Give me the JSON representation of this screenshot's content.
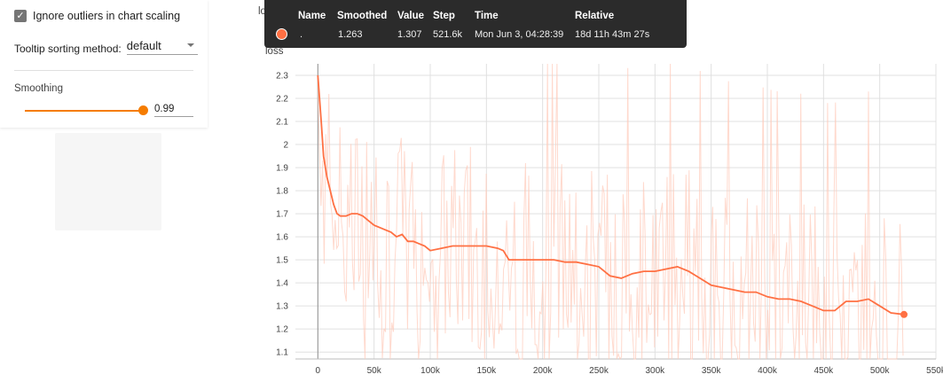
{
  "settings": {
    "ignore_outliers_label": "Ignore outliers in chart scaling",
    "ignore_outliers_checked": true,
    "tooltip_sorting_label": "Tooltip sorting method:",
    "tooltip_sorting_value": "default",
    "smoothing_label": "Smoothing",
    "smoothing_value": "0.99",
    "smoothing_level": 0.99
  },
  "header_title": "loss",
  "tooltip": {
    "headers": [
      "Name",
      "Smoothed",
      "Value",
      "Step",
      "Time",
      "Relative"
    ],
    "row": {
      "name": ".",
      "smoothed": "1.263",
      "value": "1.307",
      "step": "521.6k",
      "time": "Mon Jun 3, 04:28:39",
      "relative": "18d 11h 43m 27s"
    }
  },
  "colors": {
    "accent": "#f57c00",
    "smoothed_line": "#ff7043",
    "raw_line": "#ffccbc",
    "tooltip_bg": "#2b2b2b"
  },
  "chart_data": {
    "type": "line",
    "title": "loss",
    "xlabel": "",
    "ylabel": "",
    "x_ticks": [
      "0",
      "50k",
      "100k",
      "150k",
      "200k",
      "250k",
      "300k",
      "350k",
      "400k",
      "450k",
      "500k",
      "550k"
    ],
    "y_ticks": [
      "1.1",
      "1.2",
      "1.3",
      "1.4",
      "1.5",
      "1.6",
      "1.7",
      "1.8",
      "1.9",
      "2",
      "2.1",
      "2.2",
      "2.3"
    ],
    "xlim": [
      -20000,
      550000
    ],
    "ylim": [
      1.07,
      2.35
    ],
    "grid": true,
    "series": [
      {
        "role": "smoothed",
        "x": [
          0,
          1500,
          3000,
          5000,
          8000,
          11000,
          14000,
          17000,
          20000,
          25000,
          30000,
          35000,
          40000,
          45000,
          50000,
          55000,
          60000,
          65000,
          70000,
          75000,
          80000,
          85000,
          90000,
          95000,
          100000,
          110000,
          120000,
          130000,
          140000,
          150000,
          160000,
          165000,
          170000,
          180000,
          190000,
          200000,
          210000,
          220000,
          230000,
          240000,
          250000,
          260000,
          270000,
          280000,
          290000,
          300000,
          310000,
          320000,
          330000,
          340000,
          350000,
          360000,
          370000,
          380000,
          390000,
          400000,
          410000,
          420000,
          430000,
          440000,
          450000,
          460000,
          470000,
          480000,
          490000,
          500000,
          510000,
          521600
        ],
        "values": [
          2.3,
          2.2,
          2.1,
          1.95,
          1.86,
          1.8,
          1.74,
          1.7,
          1.69,
          1.69,
          1.7,
          1.7,
          1.69,
          1.67,
          1.65,
          1.64,
          1.63,
          1.62,
          1.6,
          1.61,
          1.58,
          1.58,
          1.57,
          1.56,
          1.54,
          1.55,
          1.56,
          1.56,
          1.56,
          1.56,
          1.55,
          1.54,
          1.5,
          1.5,
          1.5,
          1.5,
          1.5,
          1.49,
          1.49,
          1.48,
          1.47,
          1.43,
          1.42,
          1.44,
          1.45,
          1.45,
          1.46,
          1.47,
          1.45,
          1.42,
          1.39,
          1.38,
          1.37,
          1.36,
          1.36,
          1.34,
          1.33,
          1.33,
          1.32,
          1.3,
          1.28,
          1.28,
          1.32,
          1.32,
          1.33,
          1.3,
          1.27,
          1.263
        ]
      }
    ]
  }
}
